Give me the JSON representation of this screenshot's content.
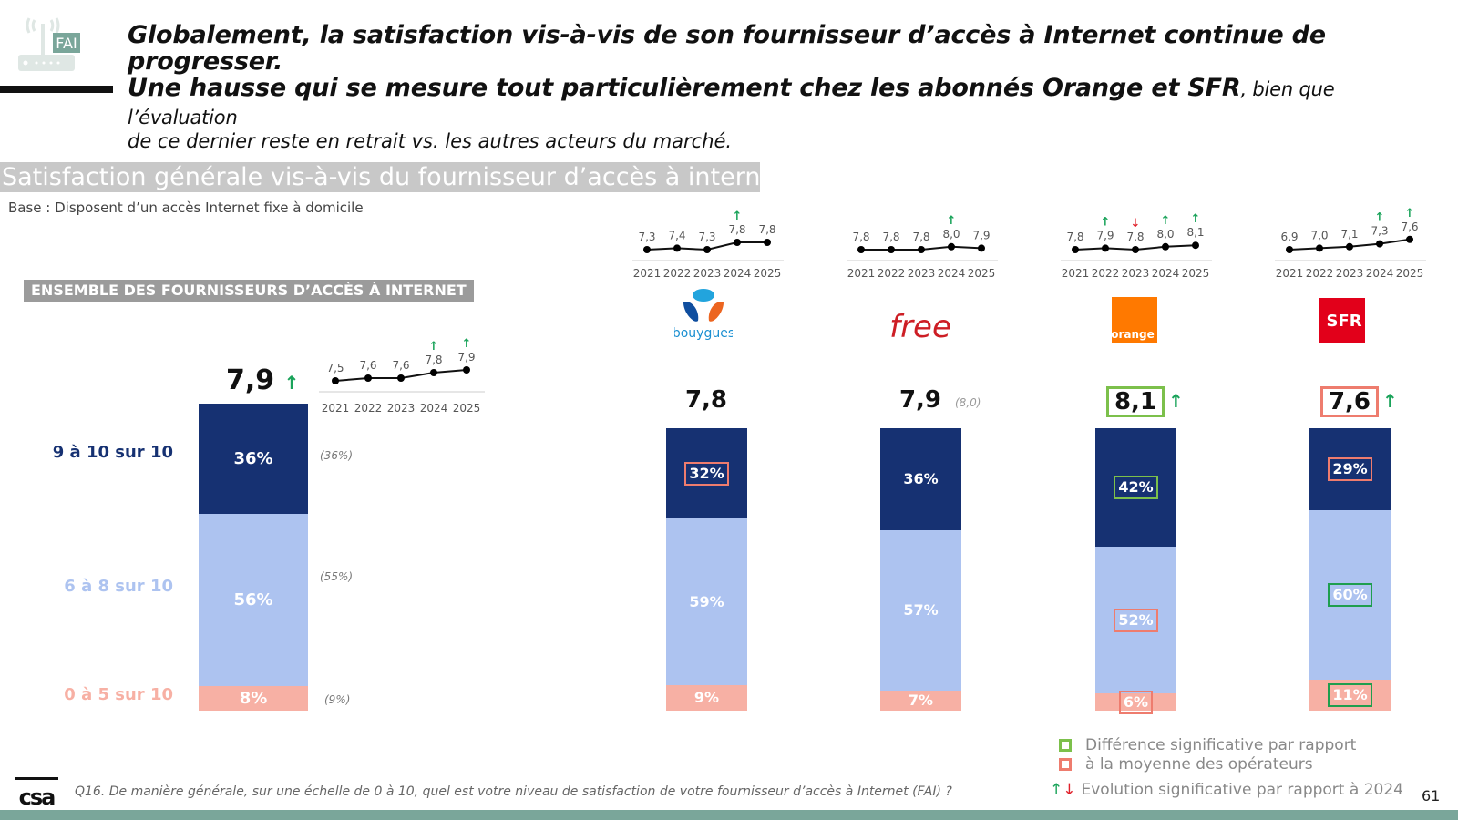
{
  "header": {
    "logo_badge": "FAI",
    "headline_line1": "Globalement, la satisfaction vis-à-vis de son fournisseur d’accès à Internet continue de progresser.",
    "headline_line2_bold": "Une hausse qui se mesure tout particulièrement chez les abonnés Orange et SFR",
    "headline_line2_normal": ", bien que l’évaluation",
    "headline_line3": "de ce dernier reste en retrait vs. les autres acteurs du marché."
  },
  "section": {
    "title": "Satisfaction générale vis-à-vis du fournisseur d’accès à internet",
    "base": "Base : Disposent d’un accès Internet fixe à domicile",
    "ensemble_label": "ENSEMBLE DES FOURNISSEURS D’ACCÈS À INTERNET"
  },
  "colors": {
    "top": "#163172",
    "mid": "#adc3f0",
    "low": "#f7b0a4",
    "sig_up": "#1aa35a",
    "sig_down": "#e0202a",
    "box_green": "#7cc04b",
    "box_green_dark": "#1f9e4e",
    "box_red": "#ee7c6e"
  },
  "categories": {
    "top": "9 à 10 sur 10",
    "mid": "6 à 8 sur 10",
    "low": "0 à 5 sur 10"
  },
  "icons": {
    "up": "↑",
    "down": "↓"
  },
  "chart_data": {
    "type": "bar",
    "title": "Satisfaction générale vis-à-vis du fournisseur d’accès à internet",
    "stacked": true,
    "categories": [
      "Ensemble",
      "Bouygues",
      "Free",
      "Orange",
      "SFR"
    ],
    "series": [
      {
        "name": "9 à 10 sur 10",
        "values": [
          36,
          32,
          36,
          42,
          29
        ]
      },
      {
        "name": "6 à 8 sur 10",
        "values": [
          56,
          59,
          57,
          52,
          60
        ]
      },
      {
        "name": "0 à 5 sur 10",
        "values": [
          8,
          9,
          7,
          6,
          11
        ]
      }
    ],
    "ylim": [
      0,
      100
    ],
    "ensemble": {
      "score": "7,9",
      "score_trend": "up",
      "previous": {
        "top": "(36%)",
        "mid": "(55%)",
        "low": "(9%)"
      },
      "labels": {
        "top": "36%",
        "mid": "56%",
        "low": "8%"
      },
      "trend": {
        "years": [
          "2021",
          "2022",
          "2023",
          "2024",
          "2025"
        ],
        "values": [
          7.5,
          7.6,
          7.6,
          7.8,
          7.9
        ],
        "labels": [
          "7,5",
          "7,6",
          "7,6",
          "7,8",
          "7,9"
        ],
        "arrows": [
          "",
          "",
          "",
          "up",
          "up"
        ]
      }
    },
    "operators": [
      {
        "name": "Bouygues",
        "logo_text": "bouygues",
        "score": "7,8",
        "score_box": "",
        "score_trend": "",
        "score_prev": "",
        "labels": {
          "top": "32%",
          "mid": "59%",
          "low": "9%"
        },
        "boxes": {
          "top": "red",
          "mid": "",
          "low": ""
        },
        "trend": {
          "years": [
            "2021",
            "2022",
            "2023",
            "2024",
            "2025"
          ],
          "values": [
            7.3,
            7.4,
            7.3,
            7.8,
            7.8
          ],
          "labels": [
            "7,3",
            "7,4",
            "7,3",
            "7,8",
            "7,8"
          ],
          "arrows": [
            "",
            "",
            "",
            "up",
            ""
          ]
        }
      },
      {
        "name": "Free",
        "logo_text": "free",
        "score": "7,9",
        "score_box": "",
        "score_trend": "",
        "score_prev": "(8,0)",
        "labels": {
          "top": "36%",
          "mid": "57%",
          "low": "7%"
        },
        "boxes": {
          "top": "",
          "mid": "",
          "low": ""
        },
        "trend": {
          "years": [
            "2021",
            "2022",
            "2023",
            "2024",
            "2025"
          ],
          "values": [
            7.8,
            7.8,
            7.8,
            8.0,
            7.9
          ],
          "labels": [
            "7,8",
            "7,8",
            "7,8",
            "8,0",
            "7,9"
          ],
          "arrows": [
            "",
            "",
            "",
            "up",
            ""
          ]
        }
      },
      {
        "name": "Orange",
        "logo_text": "orange",
        "score": "8,1",
        "score_box": "green",
        "score_trend": "up",
        "score_prev": "",
        "labels": {
          "top": "42%",
          "mid": "52%",
          "low": "6%"
        },
        "boxes": {
          "top": "green",
          "mid": "red",
          "low": "red"
        },
        "trend": {
          "years": [
            "2021",
            "2022",
            "2023",
            "2024",
            "2025"
          ],
          "values": [
            7.8,
            7.9,
            7.8,
            8.0,
            8.1
          ],
          "labels": [
            "7,8",
            "7,9",
            "7,8",
            "8,0",
            "8,1"
          ],
          "arrows": [
            "",
            "up",
            "down",
            "up",
            "up"
          ]
        }
      },
      {
        "name": "SFR",
        "logo_text": "SFR",
        "score": "7,6",
        "score_box": "red",
        "score_trend": "up",
        "score_prev": "",
        "labels": {
          "top": "29%",
          "mid": "60%",
          "low": "11%"
        },
        "boxes": {
          "top": "red",
          "mid": "darkgreen",
          "low": "darkgreen"
        },
        "trend": {
          "years": [
            "2021",
            "2022",
            "2023",
            "2024",
            "2025"
          ],
          "values": [
            6.9,
            7.0,
            7.1,
            7.3,
            7.6
          ],
          "labels": [
            "6,9",
            "7,0",
            "7,1",
            "7,3",
            "7,6"
          ],
          "arrows": [
            "",
            "",
            "",
            "up",
            "up"
          ]
        }
      }
    ]
  },
  "legend": {
    "line1": "Différence significative par rapport",
    "line2": "à la moyenne des opérateurs",
    "evolution": "Evolution significative par rapport à 2024"
  },
  "footer": {
    "question": "Q16. De manière générale, sur une échelle de 0 à 10, quel est votre niveau de satisfaction de votre fournisseur d’accès à Internet (FAI) ?",
    "page_number": "61",
    "logo": "csa"
  }
}
